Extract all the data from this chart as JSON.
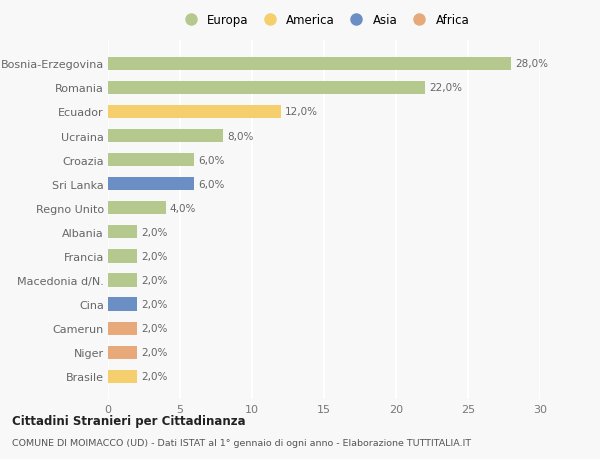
{
  "countries": [
    "Bosnia-Erzegovina",
    "Romania",
    "Ecuador",
    "Ucraina",
    "Croazia",
    "Sri Lanka",
    "Regno Unito",
    "Albania",
    "Francia",
    "Macedonia d/N.",
    "Cina",
    "Camerun",
    "Niger",
    "Brasile"
  ],
  "values": [
    28.0,
    22.0,
    12.0,
    8.0,
    6.0,
    6.0,
    4.0,
    2.0,
    2.0,
    2.0,
    2.0,
    2.0,
    2.0,
    2.0
  ],
  "continents": [
    "Europa",
    "Europa",
    "America",
    "Europa",
    "Europa",
    "Asia",
    "Europa",
    "Europa",
    "Europa",
    "Europa",
    "Asia",
    "Africa",
    "Africa",
    "America"
  ],
  "colors": {
    "Europa": "#b5c98e",
    "America": "#f5ce6e",
    "Asia": "#6b8ec4",
    "Africa": "#e8a97a"
  },
  "xlim": [
    0,
    30
  ],
  "xticks": [
    0,
    5,
    10,
    15,
    20,
    25,
    30
  ],
  "title": "Cittadini Stranieri per Cittadinanza",
  "subtitle": "COMUNE DI MOIMACCO (UD) - Dati ISTAT al 1° gennaio di ogni anno - Elaborazione TUTTITALIA.IT",
  "background_color": "#f8f8f8",
  "bar_height": 0.55,
  "grid_color": "#ffffff",
  "legend_order": [
    "Europa",
    "America",
    "Asia",
    "Africa"
  ]
}
